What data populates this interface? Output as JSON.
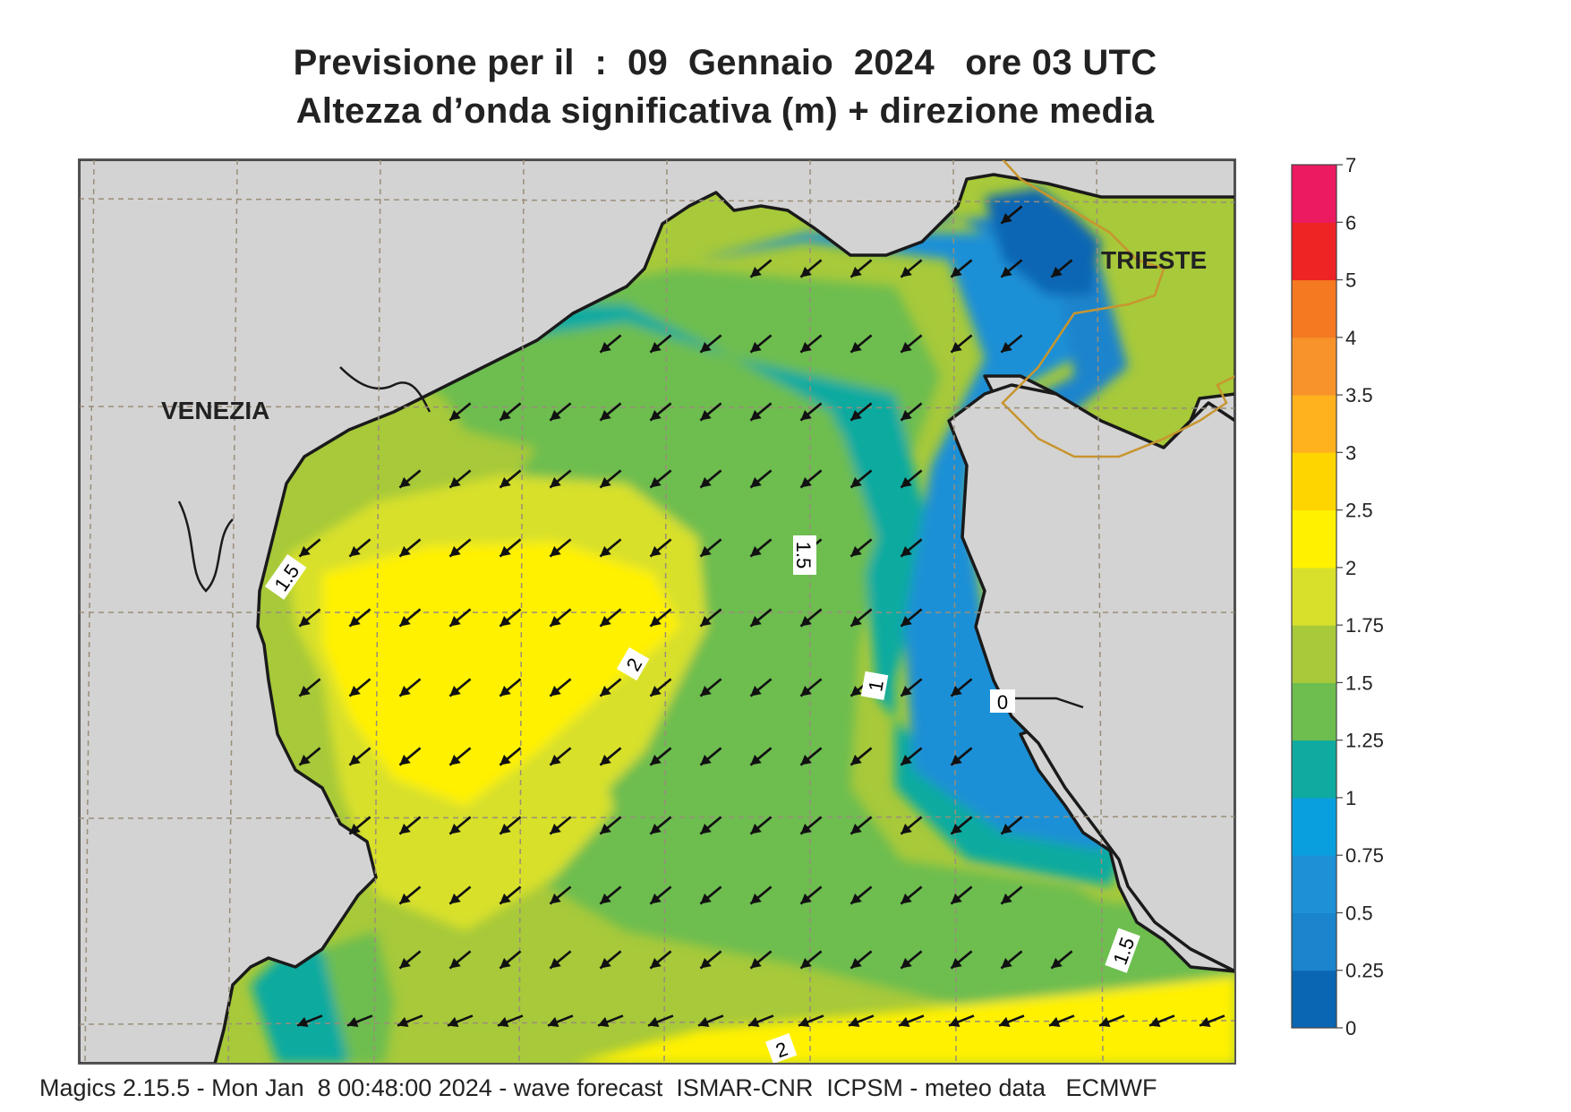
{
  "title": {
    "line1": "Previsione per il  :  09  Gennaio  2024   ore 03 UTC",
    "line2": "Altezza d’onda significativa (m) + direzione media"
  },
  "map": {
    "cities": [
      "VENEZIA",
      "TRIESTE"
    ],
    "contour_labels": [
      "1.5",
      "1.5",
      "2",
      "1",
      "0",
      "1.5",
      "2"
    ],
    "land_color": "#d3d3d3",
    "coast_color": "#1a1a1a",
    "border_color": "#c8952e"
  },
  "legend": {
    "ticks": [
      "0",
      "0.25",
      "0.5",
      "0.75",
      "1",
      "1.25",
      "1.5",
      "1.75",
      "2",
      "2.5",
      "3",
      "3.5",
      "4",
      "5",
      "6",
      "7"
    ],
    "colors": [
      "#0a66b3",
      "#1a84cc",
      "#1e90d6",
      "#099fdf",
      "#0faaa0",
      "#6dbd4f",
      "#a7c93a",
      "#d8e02b",
      "#fff100",
      "#ffd500",
      "#ffb21d",
      "#f7932a",
      "#f47921",
      "#ee2324",
      "#ec1a60"
    ]
  },
  "footer": "Magics 2.15.5 - Mon Jan  8 00:48:00 2024 - wave forecast  ISMAR-CNR  ICPSM - meteo data   ECMWF"
}
